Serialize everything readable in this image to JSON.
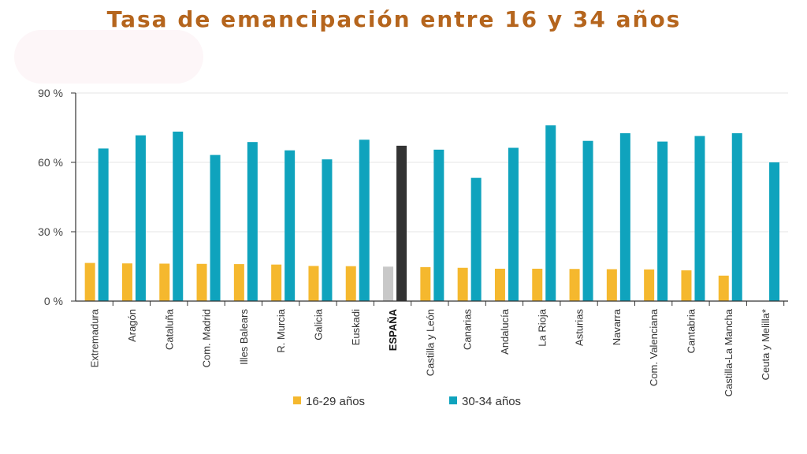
{
  "chart_data": {
    "type": "bar",
    "title": "Tasa de emancipación entre 16 y 34 años",
    "xlabel": "",
    "ylabel": "",
    "ylim": [
      0,
      90
    ],
    "yticks": [
      "0 %",
      "30 %",
      "60 %",
      "90 %"
    ],
    "ytick_values": [
      0,
      30,
      60,
      90
    ],
    "grid": true,
    "legend_position": "bottom",
    "categories": [
      "Extremadura",
      "Aragón",
      "Cataluña",
      "Com. Madrid",
      "Illes Balears",
      "R. Murcia",
      "Galicia",
      "Euskadi",
      "ESPAÑA",
      "Castilla y León",
      "Canarias",
      "Andalucía",
      "La Rioja",
      "Asturias",
      "Navarra",
      "Com. Valenciana",
      "Cantabria",
      "Castilla-La Mancha",
      "Ceuta y Melilla*"
    ],
    "highlight_category": "ESPAÑA",
    "series": [
      {
        "name": "16-29 años",
        "color": "#f5b82e",
        "highlight_color": "#c8c8c8",
        "values": [
          16.5,
          16.3,
          16.2,
          16.1,
          16.0,
          15.8,
          15.2,
          15.1,
          14.9,
          14.7,
          14.4,
          14.0,
          14.0,
          13.9,
          13.8,
          13.7,
          13.3,
          11.0,
          null
        ]
      },
      {
        "name": "30-34 años",
        "color": "#0fa3bd",
        "highlight_color": "#333333",
        "values": [
          66,
          71.7,
          73.3,
          63.2,
          68.8,
          65.2,
          61.3,
          69.8,
          67.2,
          65.5,
          53.3,
          66.3,
          76.0,
          69.3,
          72.6,
          69.0,
          71.4,
          72.6,
          60.0
        ]
      }
    ]
  },
  "colors": {
    "title": "#b5651d",
    "axis": "#333333",
    "grid": "#e6e6e6"
  }
}
